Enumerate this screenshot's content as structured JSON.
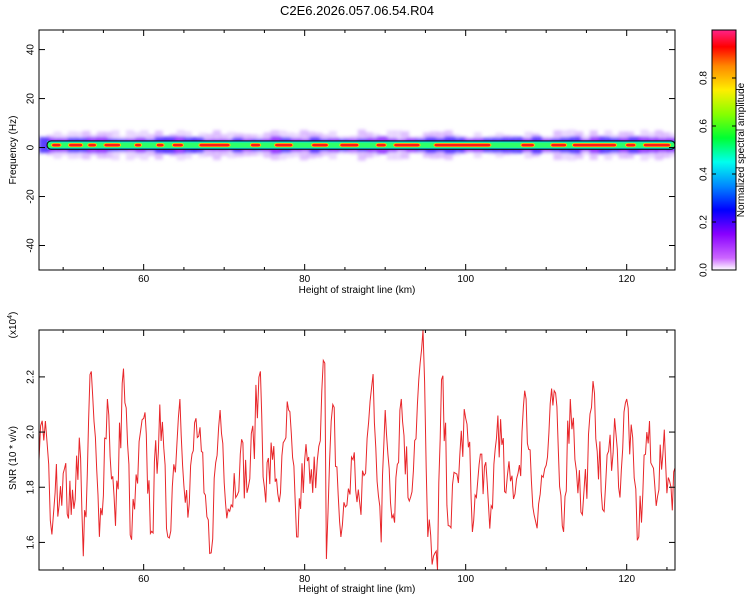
{
  "figure": {
    "title": "C2E6.2026.057.06.54.R04"
  },
  "chart_data": [
    {
      "type": "heatmap",
      "xlabel": "Height of straight line (km)",
      "ylabel": "Frequency (Hz)",
      "xlim": [
        47,
        126
      ],
      "ylim": [
        -50,
        48
      ],
      "xticks": [
        60,
        80,
        100,
        120
      ],
      "yticks": [
        -40,
        -20,
        0,
        20,
        40
      ],
      "band_center_hz": 1,
      "band_halfwidth_hz": 2,
      "colorbar": {
        "label": "Normalized spectral amplitude",
        "range": [
          0.0,
          1.0
        ],
        "ticks": [
          0.0,
          0.2,
          0.4,
          0.6,
          0.8
        ]
      },
      "hot_segments_km": [
        [
          48.5,
          49.8
        ],
        [
          50.6,
          52.5
        ],
        [
          53.0,
          54.2
        ],
        [
          55.0,
          57.2
        ],
        [
          58.8,
          59.8
        ],
        [
          61.5,
          62.6
        ],
        [
          63.5,
          65.0
        ],
        [
          66.8,
          70.8
        ],
        [
          73.2,
          74.6
        ],
        [
          76.2,
          78.6
        ],
        [
          80.8,
          83.0
        ],
        [
          84.3,
          86.8
        ],
        [
          88.8,
          90.2
        ],
        [
          91.0,
          94.4
        ],
        [
          96.0,
          103.2
        ],
        [
          106.8,
          108.6
        ],
        [
          110.5,
          112.6
        ],
        [
          113.2,
          118.8
        ],
        [
          119.8,
          121.2
        ],
        [
          122.0,
          125.5
        ]
      ]
    },
    {
      "type": "line",
      "xlabel": "Height of straight line (km)",
      "ylabel": "SNR (10 * v/v)",
      "yscale_note": "(x10",
      "yscale_exp": "4",
      "xlim": [
        47,
        126
      ],
      "ylim": [
        1.5,
        2.37
      ],
      "xticks": [
        60,
        80,
        100,
        120
      ],
      "yticks": [
        1.6,
        1.8,
        2.0,
        2.2
      ],
      "series_color": "#e8262a",
      "key_points": [
        [
          47.0,
          1.9
        ],
        [
          47.8,
          2.04
        ],
        [
          48.4,
          1.68
        ],
        [
          49.0,
          1.78
        ],
        [
          50.0,
          1.85
        ],
        [
          51.0,
          1.7
        ],
        [
          52.0,
          1.98
        ],
        [
          52.5,
          1.55
        ],
        [
          53.5,
          2.22
        ],
        [
          54.5,
          1.62
        ],
        [
          55.5,
          2.12
        ],
        [
          56.5,
          1.66
        ],
        [
          57.5,
          2.23
        ],
        [
          58.5,
          1.61
        ],
        [
          60.0,
          2.05
        ],
        [
          61.0,
          1.64
        ],
        [
          62.0,
          2.1
        ],
        [
          63.0,
          1.62
        ],
        [
          64.5,
          2.12
        ],
        [
          65.5,
          1.69
        ],
        [
          66.5,
          2.05
        ],
        [
          67.5,
          1.78
        ],
        [
          68.2,
          1.56
        ],
        [
          69.5,
          2.08
        ],
        [
          70.5,
          1.72
        ],
        [
          72.0,
          1.92
        ],
        [
          73.0,
          1.8
        ],
        [
          74.5,
          2.22
        ],
        [
          75.0,
          1.8
        ],
        [
          76.0,
          1.9
        ],
        [
          77.0,
          1.78
        ],
        [
          78.0,
          2.08
        ],
        [
          79.0,
          1.62
        ],
        [
          80.0,
          1.9
        ],
        [
          81.0,
          1.78
        ],
        [
          82.5,
          2.25
        ],
        [
          82.7,
          1.54
        ],
        [
          83.5,
          2.1
        ],
        [
          84.5,
          1.62
        ],
        [
          86.0,
          1.9
        ],
        [
          87.0,
          1.7
        ],
        [
          88.5,
          2.21
        ],
        [
          89.5,
          1.6
        ],
        [
          90.0,
          2.08
        ],
        [
          91.0,
          1.7
        ],
        [
          92.0,
          2.12
        ],
        [
          93.0,
          1.75
        ],
        [
          94.0,
          2.1
        ],
        [
          94.7,
          2.37
        ],
        [
          95.3,
          1.62
        ],
        [
          96.0,
          1.55
        ],
        [
          96.5,
          1.5
        ],
        [
          97.0,
          2.19
        ],
        [
          98.0,
          1.66
        ],
        [
          100.0,
          2.05
        ],
        [
          101.0,
          1.68
        ],
        [
          102.0,
          1.92
        ],
        [
          103.0,
          1.65
        ],
        [
          104.0,
          2.06
        ],
        [
          105.0,
          1.78
        ],
        [
          106.5,
          1.85
        ],
        [
          107.5,
          2.12
        ],
        [
          108.5,
          1.7
        ],
        [
          110.0,
          1.88
        ],
        [
          111.0,
          2.15
        ],
        [
          112.0,
          1.66
        ],
        [
          113.0,
          2.12
        ],
        [
          114.5,
          1.7
        ],
        [
          116.0,
          2.14
        ],
        [
          117.0,
          1.72
        ],
        [
          118.5,
          2.05
        ],
        [
          119.0,
          1.8
        ],
        [
          120.0,
          2.12
        ],
        [
          121.5,
          1.62
        ],
        [
          122.5,
          2.0
        ],
        [
          123.5,
          1.8
        ],
        [
          124.5,
          1.92
        ],
        [
          125.5,
          1.8
        ],
        [
          126.0,
          1.87
        ]
      ]
    }
  ]
}
